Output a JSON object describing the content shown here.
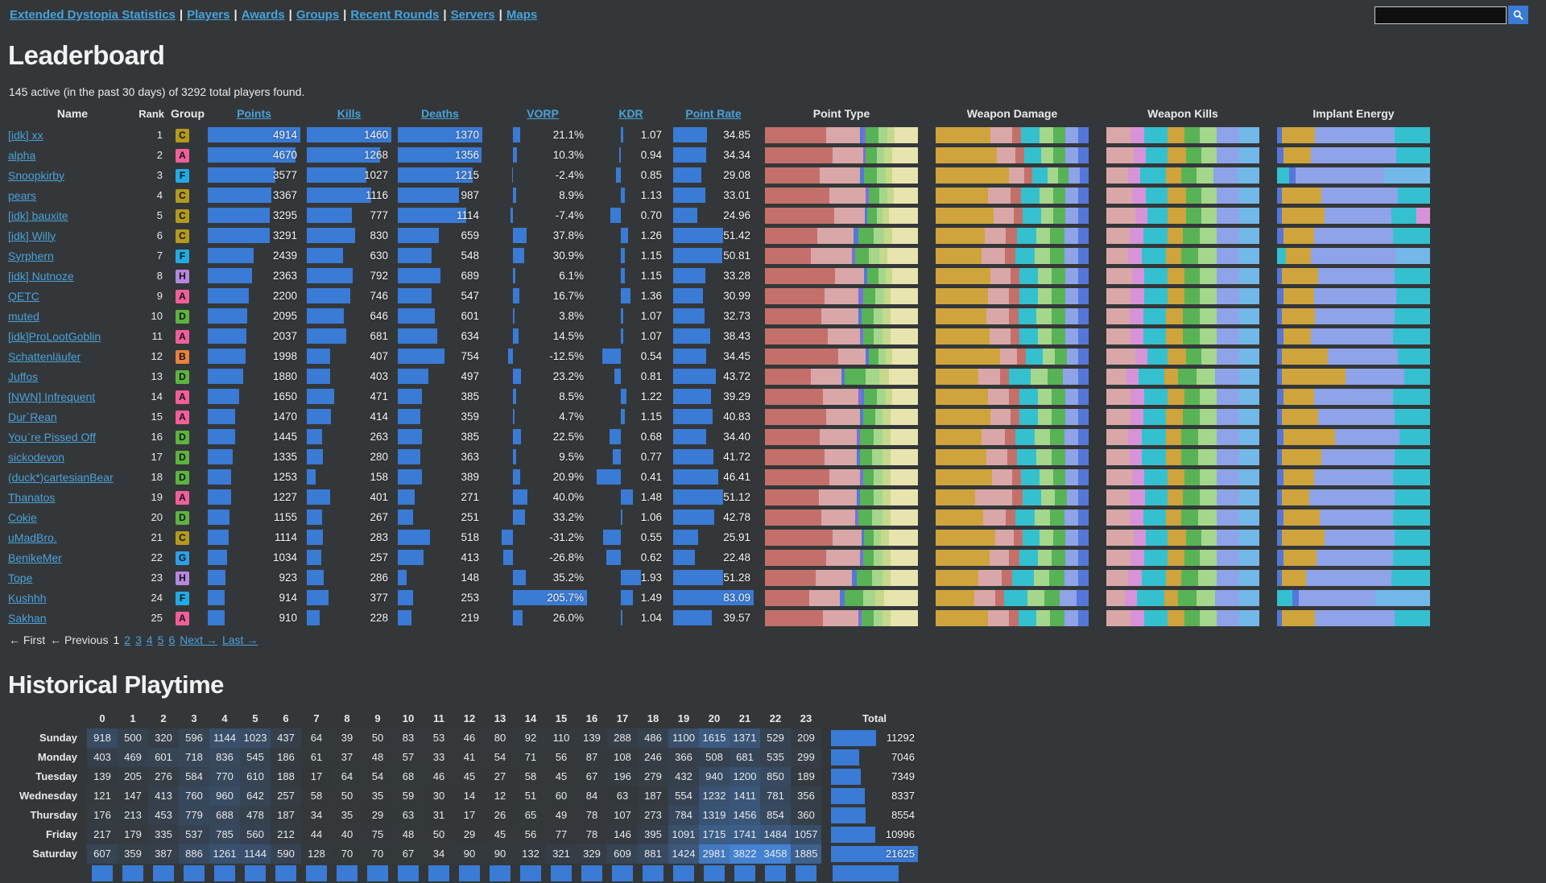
{
  "nav": {
    "separator": "|",
    "items": [
      "Extended Dystopia Statistics",
      "Players",
      "Awards",
      "Groups",
      "Recent Rounds",
      "Servers",
      "Maps"
    ]
  },
  "search": {
    "value": "",
    "icon": "magnifier-icon"
  },
  "page": {
    "title": "Leaderboard",
    "summary": "145 active (in the past 30 days) of 3292 total players found."
  },
  "colors": {
    "accent_bar": "#3a7bd5",
    "link": "#48a2dc",
    "background": "#343739",
    "groups": {
      "A": "#f05f9b",
      "B": "#e8823f",
      "C": "#b39a1e",
      "D": "#5cb43f",
      "F": "#22aae4",
      "G": "#2d9fe8",
      "H": "#b887e0"
    },
    "chart_palette": {
      "r": "#c4706a",
      "p": "#d9a7a7",
      "pu": "#7d6fd9",
      "bl": "#5577d9",
      "g": "#57b356",
      "lg": "#a4d78b",
      "yg": "#c6d98b",
      "cr": "#e8e4ae",
      "gd": "#cfa43c",
      "cy": "#35c0d0",
      "pw": "#8fa3e8",
      "or": "#d793d7",
      "lb": "#72b8e8"
    }
  },
  "leaderboard": {
    "columns": {
      "name": "Name",
      "rank": "Rank",
      "group": "Group",
      "points": "Points",
      "kills": "Kills",
      "deaths": "Deaths",
      "vorp": "VORP",
      "kdr": "KDR",
      "point_rate": "Point Rate",
      "point_type": "Point Type",
      "weapon_damage": "Weapon Damage",
      "weapon_kills": "Weapon Kills",
      "implant_energy": "Implant Energy"
    },
    "sortable": [
      "points",
      "kills",
      "deaths",
      "vorp",
      "kdr",
      "point_rate"
    ],
    "rows": [
      {
        "name": "[idk] xx",
        "rank": 1,
        "group": "C",
        "points": 4914,
        "kills": 1460,
        "deaths": 1370,
        "vorp": "21.1%",
        "kdr": "1.07",
        "rate": "34.85",
        "pt": "r40,p22,bl2,pu2,g8,lg6,yg5,cr15",
        "wd": "gd36,p14,r6,cy12,lg9,g8,pw8,bl7",
        "wk": "p16,or9,cy15,gd11,g10,lg11,pw15,lb13",
        "ie": "bl3,gd22,pw52,cy23"
      },
      {
        "name": "alpha",
        "rank": 2,
        "group": "A",
        "points": 4670,
        "kills": 1268,
        "deaths": 1356,
        "vorp": "10.3%",
        "kdr": "0.94",
        "rate": "34.34",
        "pt": "r44,p20,pu2,g7,lg5,yg5,cr17",
        "wd": "gd40,p12,r6,cy11,lg8,g8,pw8,bl7",
        "wk": "p18,or8,cy14,gd12,g10,lg10,pw15,lb13",
        "ie": "bl4,gd18,pw56,cy22"
      },
      {
        "name": "Snoopkirby",
        "rank": 3,
        "group": "F",
        "points": 3577,
        "kills": 1027,
        "deaths": 1215,
        "vorp": "-2.4%",
        "kdr": "0.85",
        "rate": "29.08",
        "pt": "r36,p26,bl3,g8,lg6,yg4,cr17",
        "wd": "gd48,p10,r5,cy10,lg7,g7,pw7,bl6",
        "wk": "p14,or8,cy17,gd10,g10,lg11,pw16,lb14",
        "ie": "cy8,bl4,pw58,lb30"
      },
      {
        "name": "pears",
        "rank": 4,
        "group": "C",
        "points": 3367,
        "kills": 1116,
        "deaths": 987,
        "vorp": "8.9%",
        "kdr": "1.13",
        "rate": "33.01",
        "pt": "r42,p24,pu2,g7,lg5,yg4,cr16",
        "wd": "gd34,p15,r7,cy12,lg9,g8,pw8,bl7",
        "wk": "p17,or9,cy14,gd12,g10,lg10,pw15,lb13",
        "ie": "bl3,gd26,pw50,cy21"
      },
      {
        "name": "[idk] bauxite",
        "rank": 5,
        "group": "C",
        "points": 3295,
        "kills": 777,
        "deaths": 1114,
        "vorp": "-7.4%",
        "kdr": "0.70",
        "rate": "24.96",
        "pt": "r45,p20,bl2,g6,lg4,yg4,cr19",
        "wd": "gd38,p13,r6,cy12,lg8,g8,pw8,bl7",
        "wk": "p19,or8,cy13,gd12,g10,lg10,pw15,lb13",
        "ie": "bl3,gd28,pw44,cy16,or9"
      },
      {
        "name": "[idk] Willy",
        "rank": 6,
        "group": "C",
        "points": 3291,
        "kills": 830,
        "deaths": 659,
        "vorp": "37.8%",
        "kdr": "1.26",
        "rate": "51.42",
        "pt": "r34,p24,bl3,g10,lg7,yg5,cr17",
        "wd": "gd32,p14,r7,cy13,lg9,g9,pw9,bl7",
        "wk": "p15,or9,cy16,gd10,g11,lg11,pw15,lb13",
        "ie": "bl4,gd20,pw52,cy24"
      },
      {
        "name": "Syrphern",
        "rank": 7,
        "group": "F",
        "points": 2439,
        "kills": 630,
        "deaths": 548,
        "vorp": "30.9%",
        "kdr": "1.15",
        "rate": "50.81",
        "pt": "r30,p27,pu2,g9,lg7,yg5,cr20",
        "wd": "gd30,p15,r7,cy13,lg10,g9,pw9,bl7",
        "wk": "p14,or9,cy16,gd10,g11,lg12,pw15,lb13",
        "ie": "cy6,gd16,pw56,lb22"
      },
      {
        "name": "[idk] Nutnoze",
        "rank": 8,
        "group": "H",
        "points": 2363,
        "kills": 792,
        "deaths": 689,
        "vorp": "6.1%",
        "kdr": "1.15",
        "rate": "33.28",
        "pt": "r46,p19,bl2,g7,lg5,yg4,cr17",
        "wd": "gd36,p13,r6,cy12,lg9,g9,pw8,bl7",
        "wk": "p17,or8,cy15,gd11,g10,lg11,pw15,lb13",
        "ie": "bl3,gd24,pw50,cy23"
      },
      {
        "name": "QETC",
        "rank": 9,
        "group": "A",
        "points": 2200,
        "kills": 746,
        "deaths": 547,
        "vorp": "16.7%",
        "kdr": "1.36",
        "rate": "30.99",
        "pt": "r39,p22,pu3,g8,lg6,yg4,cr18",
        "wd": "gd34,p14,r7,cy12,lg9,g9,pw8,bl7",
        "wk": "p16,or9,cy15,gd11,g10,lg11,pw15,lb13",
        "ie": "bl4,gd20,pw54,cy22"
      },
      {
        "name": "muted",
        "rank": 10,
        "group": "D",
        "points": 2095,
        "kills": 646,
        "deaths": 601,
        "vorp": "3.8%",
        "kdr": "1.07",
        "rate": "32.73",
        "pt": "r37,p24,bl2,g8,lg6,yg5,cr18",
        "wd": "gd33,p15,r6,cy12,lg10,g9,pw8,bl7",
        "wk": "p15,or9,cy15,gd11,g11,lg11,pw15,lb13",
        "ie": "bl3,gd22,pw52,cy23"
      },
      {
        "name": "[idk]ProLootGoblin",
        "rank": 11,
        "group": "A",
        "points": 2037,
        "kills": 681,
        "deaths": 634,
        "vorp": "14.5%",
        "kdr": "1.07",
        "rate": "38.43",
        "pt": "r41,p21,pu2,g7,lg6,yg5,cr18",
        "wd": "gd35,p14,r6,cy12,lg9,g9,pw8,bl7",
        "wk": "p16,or8,cy15,gd11,g11,lg11,pw15,lb13",
        "ie": "bl4,gd18,pw54,cy24"
      },
      {
        "name": "Schattenläufer",
        "rank": 12,
        "group": "B",
        "points": 1998,
        "kills": 407,
        "deaths": 754,
        "vorp": "-12.5%",
        "kdr": "0.54",
        "rate": "34.45",
        "pt": "r48,p18,bl2,g6,lg5,yg4,cr17",
        "wd": "gd42,p11,r6,cy11,lg8,g8,pw7,bl7",
        "wk": "p19,or8,cy13,gd12,g10,lg10,pw15,lb13",
        "ie": "bl3,gd30,pw46,cy21"
      },
      {
        "name": "Juffos",
        "rank": 13,
        "group": "D",
        "points": 1880,
        "kills": 403,
        "deaths": 497,
        "vorp": "23.2%",
        "kdr": "0.81",
        "rate": "43.72",
        "pt": "r30,p20,bl2,g14,lg9,yg6,cr19",
        "wd": "gd28,p14,r6,cy14,lg11,g10,pw10,bl7",
        "wk": "p13,or8,cy17,gd9,g12,lg12,pw16,lb13",
        "ie": "bl3,gd42,pw38,cy17"
      },
      {
        "name": "[NWN] Infrequent",
        "rank": 14,
        "group": "A",
        "points": 1650,
        "kills": 471,
        "deaths": 385,
        "vorp": "8.5%",
        "kdr": "1.22",
        "rate": "39.29",
        "pt": "r38,p23,pu2,bl2,g8,lg6,yg4,cr17",
        "wd": "gd34,p14,r7,cy12,lg9,g9,pw8,bl7",
        "wk": "p16,or9,cy15,gd11,g10,lg11,pw15,lb13",
        "ie": "bl4,gd20,pw52,cy24"
      },
      {
        "name": "Dur`Rean",
        "rank": 15,
        "group": "A",
        "points": 1470,
        "kills": 414,
        "deaths": 359,
        "vorp": "4.7%",
        "kdr": "1.15",
        "rate": "40.83",
        "pt": "r40,p22,bl2,g8,lg5,yg5,cr18",
        "wd": "gd36,p13,r6,cy12,lg9,g9,pw8,bl7",
        "wk": "p16,or8,cy15,gd11,g11,lg11,pw15,lb13",
        "ie": "bl3,gd24,pw50,cy23"
      },
      {
        "name": "You`re Pissed Off",
        "rank": 16,
        "group": "D",
        "points": 1445,
        "kills": 263,
        "deaths": 385,
        "vorp": "22.5%",
        "kdr": "0.68",
        "rate": "34.40",
        "pt": "r36,p24,pu2,g9,lg6,yg5,cr18",
        "wd": "gd30,p15,r7,cy13,lg10,g9,pw9,bl7",
        "wk": "p14,or9,cy16,gd10,g11,lg12,pw15,lb13",
        "ie": "bl4,gd34,pw42,cy20"
      },
      {
        "name": "sickodevon",
        "rank": 17,
        "group": "D",
        "points": 1335,
        "kills": 280,
        "deaths": 363,
        "vorp": "9.5%",
        "kdr": "0.77",
        "rate": "41.72",
        "pt": "r39,p21,bl2,g8,lg7,yg5,cr18",
        "wd": "gd33,p14,r6,cy13,lg10,g9,pw8,bl7",
        "wk": "p15,or8,cy16,gd10,g11,lg12,pw15,lb13",
        "ie": "bl3,gd26,pw48,cy23"
      },
      {
        "name": "(duck*)cartesianBear",
        "rank": 18,
        "group": "D",
        "points": 1253,
        "kills": 158,
        "deaths": 389,
        "vorp": "20.9%",
        "kdr": "0.41",
        "rate": "46.41",
        "pt": "r42,p20,pu2,g7,lg6,yg5,cr18",
        "wd": "gd37,p13,r6,cy12,lg9,g8,pw8,bl7",
        "wk": "p17,or8,cy15,gd11,g10,lg11,pw15,lb13",
        "ie": "bl4,gd20,pw52,cy24"
      },
      {
        "name": "Thanatos",
        "rank": 19,
        "group": "A",
        "points": 1227,
        "kills": 401,
        "deaths": 271,
        "vorp": "40.0%",
        "kdr": "1.48",
        "rate": "51.12",
        "pt": "r35,p25,bl2,g9,lg6,yg5,cr18",
        "wd": "gd26,p24,r7,cy12,lg9,g8,pw7,bl7",
        "wk": "p15,or10,cy15,gd10,g11,lg11,pw15,lb13",
        "ie": "bl3,gd18,pw56,cy23"
      },
      {
        "name": "Cokie",
        "rank": 20,
        "group": "D",
        "points": 1155,
        "kills": 267,
        "deaths": 251,
        "vorp": "33.2%",
        "kdr": "1.06",
        "rate": "42.78",
        "pt": "r37,p22,pu2,g9,lg7,yg5,cr18",
        "wd": "gd31,p15,r6,cy13,lg10,g9,pw9,bl7",
        "wk": "p15,or9,cy15,gd10,g11,lg12,pw15,lb13",
        "ie": "bl4,gd24,pw48,cy24"
      },
      {
        "name": "uMadBro.",
        "rank": 21,
        "group": "C",
        "points": 1114,
        "kills": 283,
        "deaths": 518,
        "vorp": "-31.2%",
        "kdr": "0.55",
        "rate": "25.91",
        "pt": "r44,p19,bl2,g6,lg5,yg5,cr19",
        "wd": "gd39,p12,r6,cy11,lg9,g8,pw8,bl7",
        "wk": "p18,or8,cy14,gd12,g10,lg10,pw15,lb13",
        "ie": "bl3,gd28,pw46,cy23"
      },
      {
        "name": "BenikeMer",
        "rank": 22,
        "group": "G",
        "points": 1034,
        "kills": 257,
        "deaths": 413,
        "vorp": "-26.8%",
        "kdr": "0.62",
        "rate": "22.48",
        "pt": "r40,p22,pu2,g7,lg6,yg5,cr18",
        "wd": "gd35,p13,r7,cy12,lg9,g9,pw8,bl7",
        "wk": "p16,or9,cy15,gd11,g10,lg11,pw15,lb13",
        "ie": "bl4,gd22,pw50,cy24"
      },
      {
        "name": "Tope",
        "rank": 23,
        "group": "H",
        "points": 923,
        "kills": 286,
        "deaths": 148,
        "vorp": "35.2%",
        "kdr": "1.93",
        "rate": "51.28",
        "pt": "r33,p24,bl3,g10,lg7,yg5,cr18",
        "wd": "gd28,p15,r7,cy14,lg10,g10,pw9,bl7",
        "wk": "p14,or9,cy16,gd10,g11,lg12,pw15,lb13",
        "ie": "bl3,gd16,pw56,cy25"
      },
      {
        "name": "Kushhh",
        "rank": 24,
        "group": "F",
        "points": 914,
        "kills": 377,
        "deaths": 253,
        "vorp": "205.7%",
        "kdr": "1.49",
        "rate": "83.09",
        "pt": "r29,p20,bl3,g12,lg8,yg6,cr22",
        "wd": "gd25,p14,r6,cy15,lg11,g10,pw11,bl8",
        "wk": "p12,or8,cy18,gd9,g12,lg12,pw16,lb13",
        "ie": "cy10,bl4,pw50,lb36"
      },
      {
        "name": "Sakhan",
        "rank": 25,
        "group": "A",
        "points": 910,
        "kills": 228,
        "deaths": 219,
        "vorp": "26.0%",
        "kdr": "1.04",
        "rate": "39.57",
        "pt": "r38,p23,pu2,g8,lg6,yg5,cr18",
        "wd": "gd34,p14,r6,cy12,lg9,g9,pw9,bl7",
        "wk": "p16,or9,cy15,gd11,g10,lg11,pw15,lb13",
        "ie": "bl3,gd22,pw52,cy23"
      }
    ]
  },
  "pagination": {
    "first": "← First",
    "prev": "← Previous",
    "current": "1",
    "pages": [
      "2",
      "3",
      "4",
      "5",
      "6"
    ],
    "next": "Next →",
    "last": "Last →"
  },
  "playtime": {
    "title": "Historical Playtime",
    "hours": [
      "0",
      "1",
      "2",
      "3",
      "4",
      "5",
      "6",
      "7",
      "8",
      "9",
      "10",
      "11",
      "12",
      "13",
      "14",
      "15",
      "16",
      "17",
      "18",
      "19",
      "20",
      "21",
      "22",
      "23"
    ],
    "total_label": "Total",
    "days": [
      {
        "label": "Sunday",
        "values": [
          918,
          500,
          320,
          596,
          1144,
          1023,
          437,
          64,
          39,
          50,
          83,
          53,
          46,
          80,
          92,
          110,
          139,
          288,
          486,
          1100,
          1615,
          1371,
          529,
          209
        ],
        "total": 11292
      },
      {
        "label": "Monday",
        "values": [
          403,
          469,
          601,
          718,
          836,
          545,
          186,
          61,
          37,
          48,
          57,
          33,
          41,
          54,
          71,
          56,
          87,
          108,
          246,
          366,
          508,
          681,
          535,
          299
        ],
        "total": 7046
      },
      {
        "label": "Tuesday",
        "values": [
          139,
          205,
          276,
          584,
          770,
          610,
          188,
          17,
          64,
          54,
          68,
          46,
          45,
          27,
          58,
          45,
          67,
          196,
          279,
          432,
          940,
          1200,
          850,
          189
        ],
        "total": 7349
      },
      {
        "label": "Wednesday",
        "values": [
          121,
          147,
          413,
          760,
          960,
          642,
          257,
          58,
          50,
          35,
          59,
          30,
          14,
          12,
          51,
          60,
          84,
          63,
          187,
          554,
          1232,
          1411,
          781,
          356
        ],
        "total": 8337
      },
      {
        "label": "Thursday",
        "values": [
          176,
          213,
          453,
          779,
          688,
          478,
          187,
          34,
          35,
          29,
          63,
          31,
          17,
          26,
          65,
          49,
          78,
          107,
          273,
          784,
          1319,
          1456,
          854,
          360
        ],
        "total": 8554
      },
      {
        "label": "Friday",
        "values": [
          217,
          179,
          335,
          537,
          785,
          560,
          212,
          44,
          40,
          75,
          48,
          50,
          29,
          45,
          56,
          77,
          78,
          146,
          395,
          1091,
          1715,
          1741,
          1484,
          1057
        ],
        "total": 10996
      },
      {
        "label": "Saturday",
        "values": [
          607,
          359,
          387,
          886,
          1261,
          1144,
          590,
          128,
          70,
          70,
          67,
          34,
          90,
          90,
          132,
          321,
          329,
          609,
          881,
          1424,
          2981,
          3822,
          3458,
          1885
        ],
        "total": 21625
      }
    ]
  }
}
